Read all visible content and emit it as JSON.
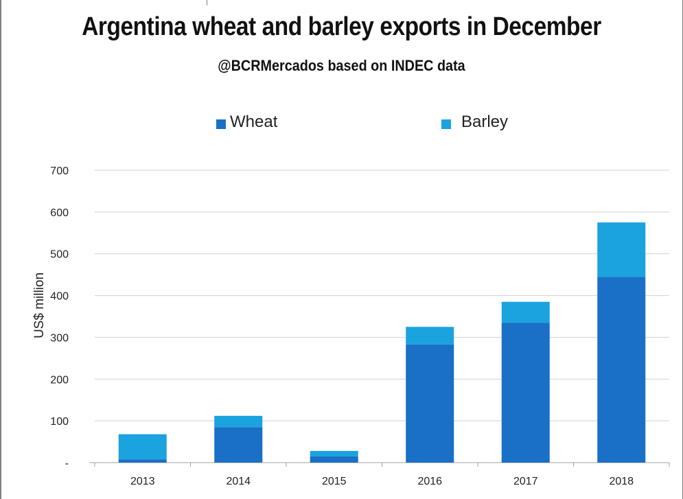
{
  "chart_data": {
    "type": "bar",
    "stacked": true,
    "title": "Argentina wheat and barley exports in December",
    "subtitle": "@BCRMercados based on INDEC data",
    "xlabel": "",
    "ylabel": "US$ million",
    "categories": [
      "2013",
      "2014",
      "2015",
      "2016",
      "2017",
      "2018"
    ],
    "series": [
      {
        "name": "Wheat",
        "color": "#1a6fc6",
        "values": [
          8,
          85,
          15,
          283,
          335,
          445
        ]
      },
      {
        "name": "Barley",
        "color": "#1aa3de",
        "values": [
          60,
          27,
          13,
          42,
          50,
          130
        ]
      }
    ],
    "ylim": [
      0,
      700
    ],
    "yticks": [
      0,
      100,
      200,
      300,
      400,
      500,
      600,
      700
    ],
    "ytick_labels": [
      "-",
      "100",
      "200",
      "300",
      "400",
      "500",
      "600",
      "700"
    ],
    "grid": true,
    "legend_position": "top"
  }
}
